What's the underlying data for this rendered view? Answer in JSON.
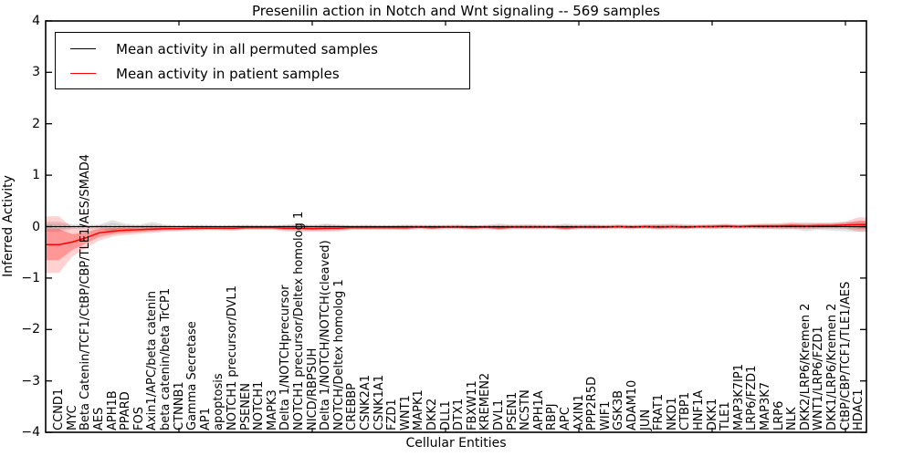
{
  "title": "Presenilin action in Notch and Wnt signaling -- 569 samples",
  "axes": {
    "ylabel": "Inferred Activity",
    "xlabel": "Cellular Entities",
    "yticks": [
      "4",
      "3",
      "2",
      "1",
      "0",
      "−1",
      "−2",
      "−3",
      "−4"
    ],
    "ylim": [
      -4,
      4
    ]
  },
  "legend": {
    "items": [
      {
        "label": "Mean activity in all permuted samples",
        "color": "#000000"
      },
      {
        "label": "Mean activity in patient samples",
        "color": "#ff0000"
      }
    ]
  },
  "colors": {
    "patient_line": "#ff0000",
    "permuted_line": "#000000",
    "patient_band": "rgba(255,0,0,0.18)",
    "patient_band_inner": "rgba(255,0,0,0.28)",
    "permuted_band": "rgba(130,130,130,0.22)",
    "background": "#ffffff",
    "spine": "#000000"
  },
  "chart_data": {
    "type": "line",
    "title": "Presenilin action in Notch and Wnt signaling -- 569 samples",
    "xlabel": "Cellular Entities",
    "ylabel": "Inferred Activity",
    "ylim": [
      -4,
      4
    ],
    "ytick_values": [
      4,
      3,
      2,
      1,
      0,
      -1,
      -2,
      -3,
      -4
    ],
    "x_axis_tick_positions": [
      10,
      20,
      30,
      40,
      50,
      60
    ],
    "grid": false,
    "zero_line": "dotted",
    "legend_position": "upper left",
    "categories": [
      "CCND1",
      "MYC",
      "Beta Catenin/TCF1/CtBP/CBP/TLE1/AES/SMAD4",
      "AES",
      "APH1B",
      "PPARD",
      "FOS",
      "Axin1/APC/beta catenin",
      "beta catenin/beta TrCP1",
      "CTNNB1",
      "Gamma Secretase",
      "AP1",
      "apoptosis",
      "NOTCH1 precursor/DVL1",
      "PSENEN",
      "NOTCH1",
      "MAPK3",
      "Delta 1/NOTCHprecursor",
      "NOTCH1 precursor/Deltex homolog 1",
      "NICD/RBPSUH",
      "Delta 1/NOTCH/NOTCH(cleaved)",
      "NOTCH/Deltex homolog 1",
      "CREBBP",
      "CSNK2A1",
      "CSNK1A1",
      "FZD1",
      "WNT1",
      "MAPK1",
      "DKK2",
      "DLL1",
      "DTX1",
      "FBXW11",
      "KREMEN2",
      "DVL1",
      "PSEN1",
      "NCSTN",
      "APH1A",
      "RBPJ",
      "APC",
      "AXIN1",
      "PPP2R5D",
      "WIF1",
      "GSK3B",
      "ADAM10",
      "JUN",
      "FRAT1",
      "NKD1",
      "CTBP1",
      "HNF1A",
      "DKK1",
      "TLE1",
      "MAP3K7IP1",
      "LRP6/FZD1",
      "MAP3K7",
      "LRP6",
      "NLK",
      "DKK2/LRP6/Kremen 2",
      "WNT1/LRP6/FZD1",
      "DKK1/LRP6/Kremen 2",
      "CtBP/CBP/TCF1/TLE1/AES",
      "HDAC1"
    ],
    "series": [
      {
        "name": "Mean activity in all permuted samples",
        "color": "#000000",
        "mean": [
          0,
          0,
          0,
          0,
          0,
          0,
          0,
          0,
          0,
          0,
          0,
          0,
          0,
          0,
          0,
          0,
          0,
          0,
          0,
          0,
          0,
          0,
          0,
          0,
          0,
          0,
          0,
          0,
          0,
          0,
          0,
          0,
          0,
          0,
          0,
          0,
          0,
          0,
          0,
          0,
          0,
          0,
          0,
          0,
          0,
          0,
          0,
          0,
          0,
          0,
          0,
          0,
          0,
          0,
          0,
          0,
          0,
          0,
          0,
          0,
          0
        ],
        "spread": [
          0.1,
          0.05,
          0.04,
          0.04,
          0.13,
          0.06,
          0.04,
          0.09,
          0.04,
          0.03,
          0.03,
          0.04,
          0.03,
          0.03,
          0.04,
          0.03,
          0.03,
          0.04,
          0.05,
          0.04,
          0.06,
          0.04,
          0.03,
          0.04,
          0.03,
          0.03,
          0.04,
          0.03,
          0.04,
          0.03,
          0.04,
          0.03,
          0.03,
          0.06,
          0.04,
          0.05,
          0.04,
          0.03,
          0.06,
          0.04,
          0.05,
          0.03,
          0.04,
          0.03,
          0.04,
          0.05,
          0.06,
          0.05,
          0.03,
          0.05,
          0.04,
          0.04,
          0.05,
          0.04,
          0.06,
          0.05,
          0.09,
          0.06,
          0.08,
          0.09,
          0.1
        ]
      },
      {
        "name": "Mean activity in patient samples",
        "color": "#ff0000",
        "mean": [
          -0.35,
          -0.3,
          -0.22,
          -0.12,
          -0.09,
          -0.07,
          -0.06,
          -0.05,
          -0.04,
          -0.04,
          -0.03,
          -0.03,
          -0.03,
          -0.03,
          -0.02,
          -0.02,
          -0.02,
          -0.03,
          -0.03,
          -0.04,
          -0.03,
          -0.03,
          -0.02,
          -0.02,
          -0.02,
          -0.02,
          -0.02,
          -0.01,
          -0.02,
          -0.01,
          -0.01,
          -0.02,
          -0.01,
          -0.02,
          -0.01,
          -0.01,
          -0.01,
          -0.01,
          -0.02,
          -0.01,
          -0.01,
          -0.01,
          0.0,
          -0.01,
          0.0,
          -0.01,
          0.0,
          -0.01,
          0.0,
          0.0,
          0.01,
          0.0,
          0.01,
          0.01,
          0.01,
          0.02,
          0.01,
          0.02,
          0.02,
          0.03,
          0.04
        ],
        "spread": [
          0.55,
          0.28,
          0.2,
          0.15,
          0.1,
          0.09,
          0.08,
          0.07,
          0.06,
          0.05,
          0.05,
          0.04,
          0.04,
          0.05,
          0.04,
          0.04,
          0.04,
          0.06,
          0.07,
          0.06,
          0.07,
          0.06,
          0.04,
          0.04,
          0.04,
          0.04,
          0.05,
          0.04,
          0.04,
          0.04,
          0.04,
          0.04,
          0.04,
          0.05,
          0.04,
          0.04,
          0.04,
          0.04,
          0.05,
          0.04,
          0.04,
          0.04,
          0.04,
          0.04,
          0.04,
          0.05,
          0.04,
          0.04,
          0.04,
          0.04,
          0.05,
          0.04,
          0.04,
          0.06,
          0.05,
          0.07,
          0.05,
          0.06,
          0.05,
          0.07,
          0.14
        ]
      }
    ]
  }
}
